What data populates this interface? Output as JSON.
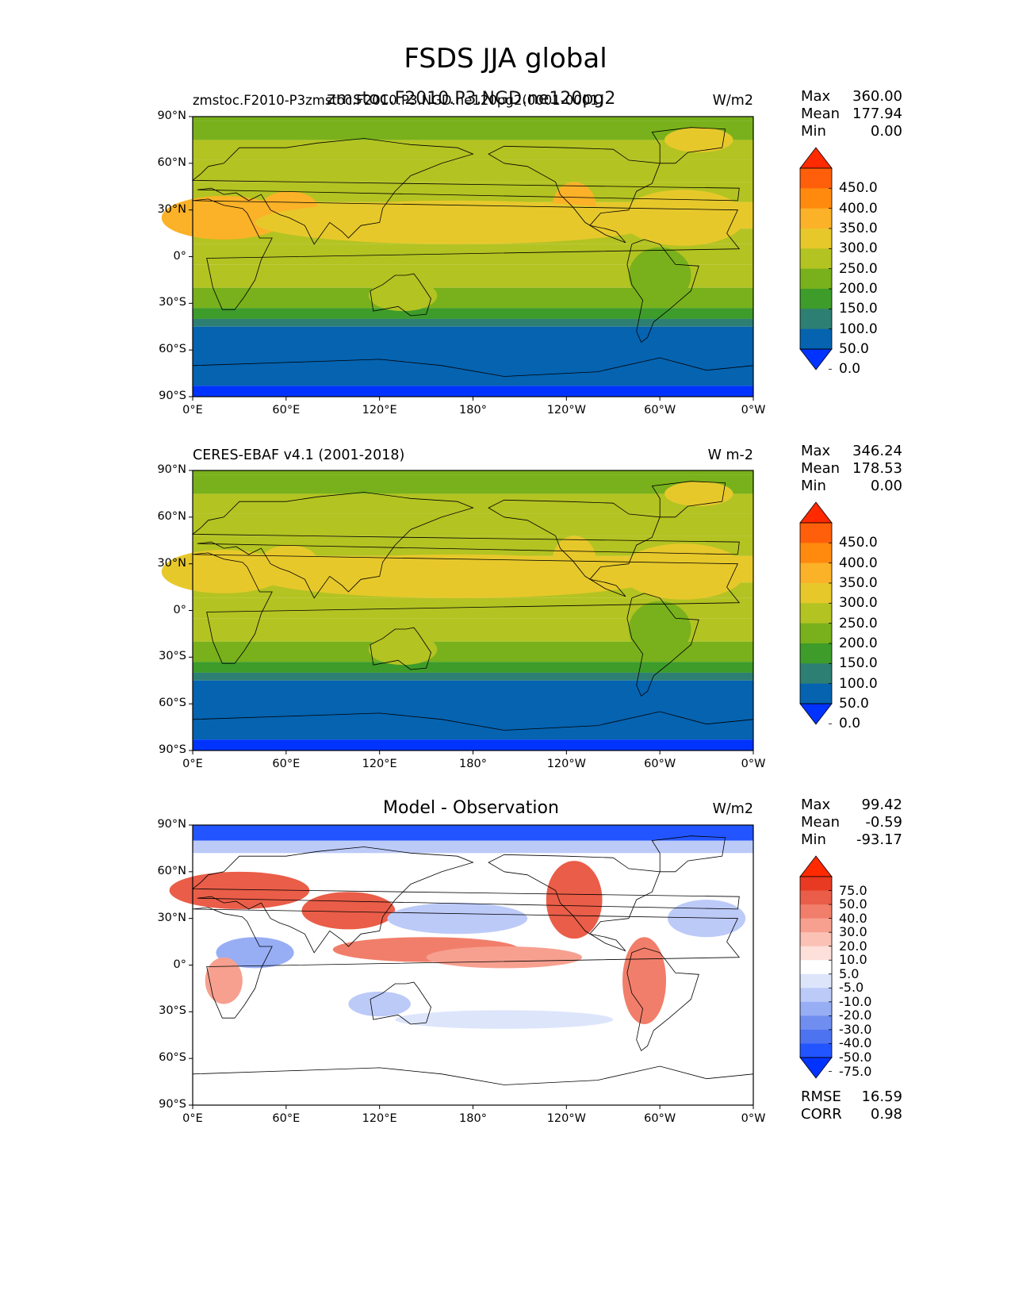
{
  "title": "FSDS JJA global",
  "axes": {
    "xticks": [
      "0°E",
      "60°E",
      "120°E",
      "180°",
      "120°W",
      "60°W",
      "0°W"
    ],
    "yticks": [
      "90°N",
      "60°N",
      "30°N",
      "0°",
      "30°S",
      "60°S",
      "90°S"
    ]
  },
  "panels": [
    {
      "id": "test",
      "title_left": "zmstoc.F2010-P3zmstoc.F2010.P3.NGD.ne120pg2(0001-0001)",
      "title_center": "zmstoc.F2010.P3.NGD.ne120pg2",
      "units": "W/m2",
      "stats": [
        {
          "label": "Max",
          "value": "360.00"
        },
        {
          "label": "Mean",
          "value": "177.94"
        },
        {
          "label": "Min",
          "value": "0.00"
        }
      ],
      "colorbar_labels": [
        "450.0",
        "400.0",
        "350.0",
        "300.0",
        "250.0",
        "200.0",
        "150.0",
        "100.0",
        "50.0",
        "0.0"
      ]
    },
    {
      "id": "ref",
      "title_left": "CERES-EBAF v4.1 (2001-2018)",
      "title_center": "",
      "units": "W m-2",
      "stats": [
        {
          "label": "Max",
          "value": "346.24"
        },
        {
          "label": "Mean",
          "value": "178.53"
        },
        {
          "label": "Min",
          "value": "0.00"
        }
      ],
      "colorbar_labels": [
        "450.0",
        "400.0",
        "350.0",
        "300.0",
        "250.0",
        "200.0",
        "150.0",
        "100.0",
        "50.0",
        "0.0"
      ]
    },
    {
      "id": "diff",
      "title_left": "",
      "title_center": "Model - Observation",
      "units": "W/m2",
      "stats": [
        {
          "label": "Max",
          "value": "99.42"
        },
        {
          "label": "Mean",
          "value": "-0.59"
        },
        {
          "label": "Min",
          "value": "-93.17"
        }
      ],
      "colorbar_labels": [
        "75.0",
        "50.0",
        "40.0",
        "30.0",
        "20.0",
        "10.0",
        "5.0",
        "-5.0",
        "-10.0",
        "-20.0",
        "-30.0",
        "-40.0",
        "-50.0",
        "-75.0"
      ],
      "metrics": [
        {
          "label": "RMSE",
          "value": "16.59"
        },
        {
          "label": "CORR",
          "value": "0.98"
        }
      ]
    }
  ],
  "colors": {
    "abs_bands": [
      "#0033ff",
      "#0563b0",
      "#2e7f73",
      "#3d9c2a",
      "#78b11b",
      "#b3c322",
      "#e7c82b",
      "#fbb228",
      "#ff8a0e",
      "#ff5e0a",
      "#ff2a00"
    ],
    "diff_bands": [
      "#0033ff",
      "#2255ff",
      "#4d73f0",
      "#6f8ef0",
      "#97aef5",
      "#bccaf8",
      "#dde5fb",
      "#ffffff",
      "#fde0da",
      "#fbc1b5",
      "#f7a08f",
      "#f17e6a",
      "#ea5d48",
      "#e83a22",
      "#ff2a00"
    ]
  }
}
